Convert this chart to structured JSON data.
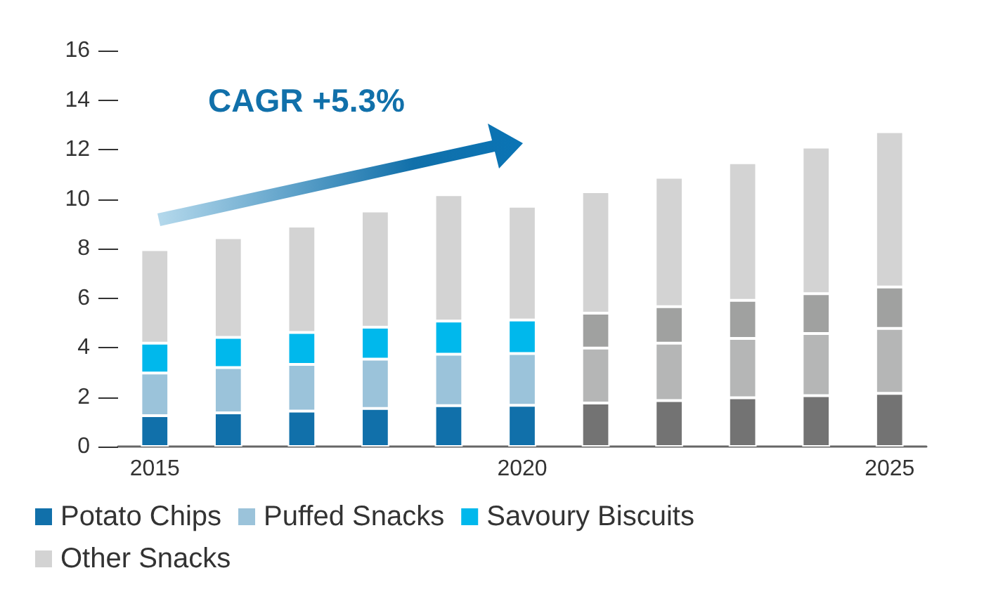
{
  "chart_data": {
    "type": "bar",
    "stacked": true,
    "categories": [
      "2015",
      null,
      null,
      null,
      null,
      "2020",
      null,
      null,
      null,
      null,
      "2025"
    ],
    "series": [
      {
        "name": "Potato Chips",
        "colors": [
          "#1170aa",
          "#1170aa",
          "#1170aa",
          "#1170aa",
          "#1170aa",
          "#1170aa",
          "#737373",
          "#737373",
          "#737373",
          "#737373",
          "#737373"
        ],
        "values": [
          1.25,
          1.36,
          1.43,
          1.54,
          1.65,
          1.67,
          1.76,
          1.86,
          1.97,
          2.06,
          2.15
        ]
      },
      {
        "name": "Puffed Snacks",
        "colors": [
          "#9bc3da",
          "#9bc3da",
          "#9bc3da",
          "#9bc3da",
          "#9bc3da",
          "#9bc3da",
          "#b5b6b6",
          "#b5b6b6",
          "#b5b6b6",
          "#b5b6b6",
          "#b5b6b6"
        ],
        "values": [
          1.72,
          1.83,
          1.89,
          1.99,
          2.08,
          2.09,
          2.22,
          2.32,
          2.4,
          2.51,
          2.62
        ]
      },
      {
        "name": "Savoury Biscuits",
        "colors": [
          "#00b8ec",
          "#00b8ec",
          "#00b8ec",
          "#00b8ec",
          "#00b8ec",
          "#00b8ec",
          "#a0a1a0",
          "#a0a1a0",
          "#a0a1a0",
          "#a0a1a0",
          "#a0a1a0"
        ],
        "values": [
          1.21,
          1.22,
          1.29,
          1.29,
          1.34,
          1.35,
          1.41,
          1.47,
          1.54,
          1.61,
          1.68
        ]
      },
      {
        "name": "Other Snacks",
        "colors": [
          "#d3d3d3",
          "#d3d3d3",
          "#d3d3d3",
          "#d3d3d3",
          "#d3d3d3",
          "#d3d3d3",
          "#d3d3d3",
          "#d3d3d3",
          "#d3d3d3",
          "#d3d3d3",
          "#d3d3d3"
        ],
        "values": [
          3.78,
          4.03,
          4.3,
          4.7,
          5.11,
          4.6,
          4.91,
          5.23,
          5.56,
          5.92,
          6.27
        ]
      }
    ],
    "ylim": [
      0,
      16
    ],
    "yticks": [
      0,
      2,
      4,
      6,
      8,
      10,
      12,
      14,
      16
    ],
    "grid": false,
    "legend": "bottom",
    "annotations": [
      "CAGR +5.3%"
    ]
  }
}
